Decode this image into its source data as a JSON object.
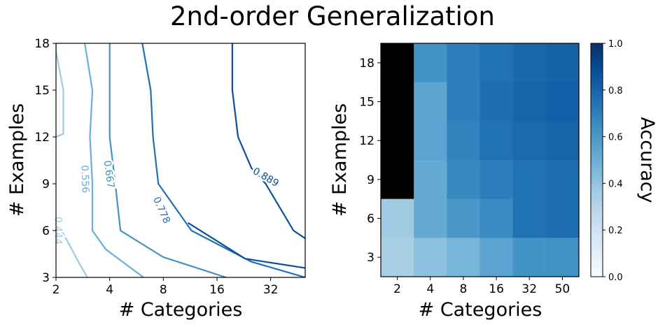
{
  "title": "2nd-order Generalization",
  "chart_data": [
    {
      "type": "contour",
      "xlabel": "# Categories",
      "ylabel": "# Examples",
      "x_ticks": [
        "2",
        "4",
        "8",
        "16",
        "32"
      ],
      "y_ticks": [
        "3",
        "6",
        "9",
        "12",
        "15",
        "18"
      ],
      "x_scale": "log2",
      "xlim": [
        2,
        50
      ],
      "ylim": [
        3,
        18
      ],
      "levels": [
        {
          "label": "0.444",
          "color": "#9ecae1",
          "points": [
            [
              2,
              18
            ],
            [
              2,
              17.5
            ],
            [
              2.2,
              15
            ],
            [
              2.2,
              12.2
            ],
            [
              2,
              12
            ]
          ],
          "secondary": [
            [
              3.0,
              3
            ],
            [
              2.7,
              3.9
            ],
            [
              2.4,
              5
            ],
            [
              2.15,
              6
            ],
            [
              2,
              6.5
            ]
          ]
        },
        {
          "label": "0.556",
          "color": "#6baed6",
          "points": [
            [
              2.9,
              18
            ],
            [
              3.2,
              15
            ],
            [
              3.1,
              12
            ],
            [
              3.2,
              9
            ],
            [
              3.2,
              6
            ],
            [
              3.8,
              4.8
            ],
            [
              6.2,
              3
            ]
          ]
        },
        {
          "label": "0.667",
          "color": "#4292c6",
          "points": [
            [
              4.0,
              18
            ],
            [
              4.0,
              15
            ],
            [
              4.0,
              12
            ],
            [
              4.3,
              9
            ],
            [
              4.6,
              6
            ],
            [
              8,
              4.3
            ],
            [
              18,
              3
            ]
          ]
        },
        {
          "label": "0.778",
          "color": "#2171b5",
          "points": [
            [
              6.1,
              18
            ],
            [
              6.8,
              15
            ],
            [
              7.0,
              12
            ],
            [
              7.5,
              9
            ],
            [
              11.5,
              6
            ],
            [
              25,
              4
            ],
            [
              50,
              3
            ]
          ]
        },
        {
          "label": "0.889",
          "color": "#08519c",
          "points": [
            [
              19.5,
              18
            ],
            [
              19.5,
              15
            ],
            [
              21,
              12
            ],
            [
              25,
              10
            ],
            [
              30,
              9
            ],
            [
              43,
              6
            ],
            [
              50,
              5.5
            ]
          ],
          "secondary": [
            [
              11,
              6.5
            ],
            [
              23,
              4.2
            ],
            [
              50,
              3.6
            ]
          ]
        }
      ]
    },
    {
      "type": "heatmap",
      "xlabel": "# Categories",
      "ylabel": "# Examples",
      "categories": [
        "2",
        "4",
        "8",
        "16",
        "32",
        "50"
      ],
      "rows": [
        "18",
        "15",
        "12",
        "9",
        "6",
        "3"
      ],
      "values": [
        [
          0.0,
          0.62,
          0.7,
          0.75,
          0.79,
          0.81
        ],
        [
          0.0,
          0.54,
          0.7,
          0.76,
          0.8,
          0.82
        ],
        [
          0.0,
          0.55,
          0.68,
          0.75,
          0.78,
          0.8
        ],
        [
          0.0,
          0.52,
          0.66,
          0.7,
          0.75,
          0.77
        ],
        [
          0.37,
          0.52,
          0.6,
          0.65,
          0.75,
          0.77
        ],
        [
          0.34,
          0.42,
          0.47,
          0.55,
          0.62,
          0.63
        ]
      ],
      "colorbar": {
        "label": "Accuracy",
        "ticks": [
          "0.0",
          "0.2",
          "0.4",
          "0.6",
          "0.8",
          "1.0"
        ],
        "range": [
          0,
          1
        ]
      }
    }
  ]
}
